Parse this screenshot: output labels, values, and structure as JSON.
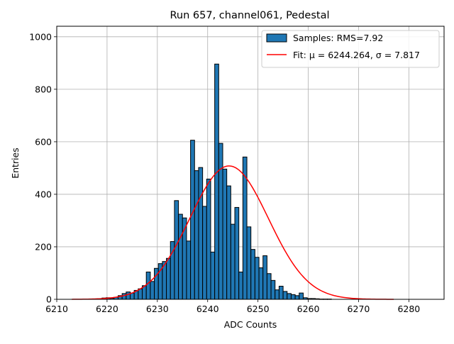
{
  "chart_data": {
    "type": "bar",
    "title": "Run 657, channel061, Pedestal",
    "xlabel": "ADC Counts",
    "ylabel": "Entries",
    "xlim": [
      6210,
      6287
    ],
    "ylim": [
      0,
      1040
    ],
    "grid": true,
    "legend_position": "top-right",
    "x_ticks": [
      6210,
      6220,
      6230,
      6240,
      6250,
      6260,
      6270,
      6280
    ],
    "y_ticks": [
      0,
      200,
      400,
      600,
      800,
      1000
    ],
    "bar_color": "#1f77b4",
    "fit_color": "#ff0000",
    "series": [
      {
        "name": "Samples: RMS=7.92",
        "kind": "histogram",
        "bin_width": 0.8,
        "x": [
          6219.0,
          6219.8,
          6220.6,
          6221.4,
          6222.2,
          6223.0,
          6223.8,
          6224.6,
          6225.4,
          6226.2,
          6227.0,
          6227.8,
          6228.6,
          6229.4,
          6230.2,
          6231.0,
          6231.8,
          6232.6,
          6233.4,
          6234.2,
          6235.0,
          6235.8,
          6236.6,
          6237.4,
          6238.2,
          6239.0,
          6239.8,
          6240.6,
          6241.4,
          6242.2,
          6243.0,
          6243.8,
          6244.6,
          6245.4,
          6246.2,
          6247.0,
          6247.8,
          6248.6,
          6249.4,
          6250.2,
          6251.0,
          6251.8,
          6252.6,
          6253.4,
          6254.2,
          6255.0,
          6255.8,
          6256.6,
          6257.4,
          6258.2,
          6259.0,
          6259.8,
          6260.6,
          6261.4,
          6262.2,
          6263.0,
          6263.8,
          6264.6,
          6265.4,
          6266.2,
          6267.0,
          6267.8,
          6268.6,
          6269.4,
          6270.2
        ],
        "values": [
          5,
          6,
          4,
          8,
          14,
          22,
          28,
          24,
          34,
          40,
          52,
          104,
          68,
          118,
          136,
          144,
          156,
          220,
          376,
          324,
          310,
          222,
          606,
          490,
          502,
          354,
          458,
          180,
          896,
          594,
          496,
          432,
          286,
          350,
          104,
          542,
          276,
          190,
          160,
          120,
          166,
          98,
          72,
          36,
          50,
          30,
          22,
          18,
          14,
          24,
          6,
          3,
          3,
          2,
          1,
          1,
          1,
          0,
          0,
          0,
          0,
          0,
          0,
          0,
          0
        ]
      },
      {
        "name": "Fit: μ = 6244.264, σ = 7.817",
        "kind": "gaussian",
        "mu": 6244.264,
        "sigma": 7.817,
        "amplitude": 508,
        "x_range": [
          6213,
          6277
        ]
      }
    ],
    "legend": [
      {
        "label": "Samples: RMS=7.92",
        "style": "patch"
      },
      {
        "label": "Fit: μ = 6244.264, σ = 7.817",
        "style": "line"
      }
    ]
  }
}
